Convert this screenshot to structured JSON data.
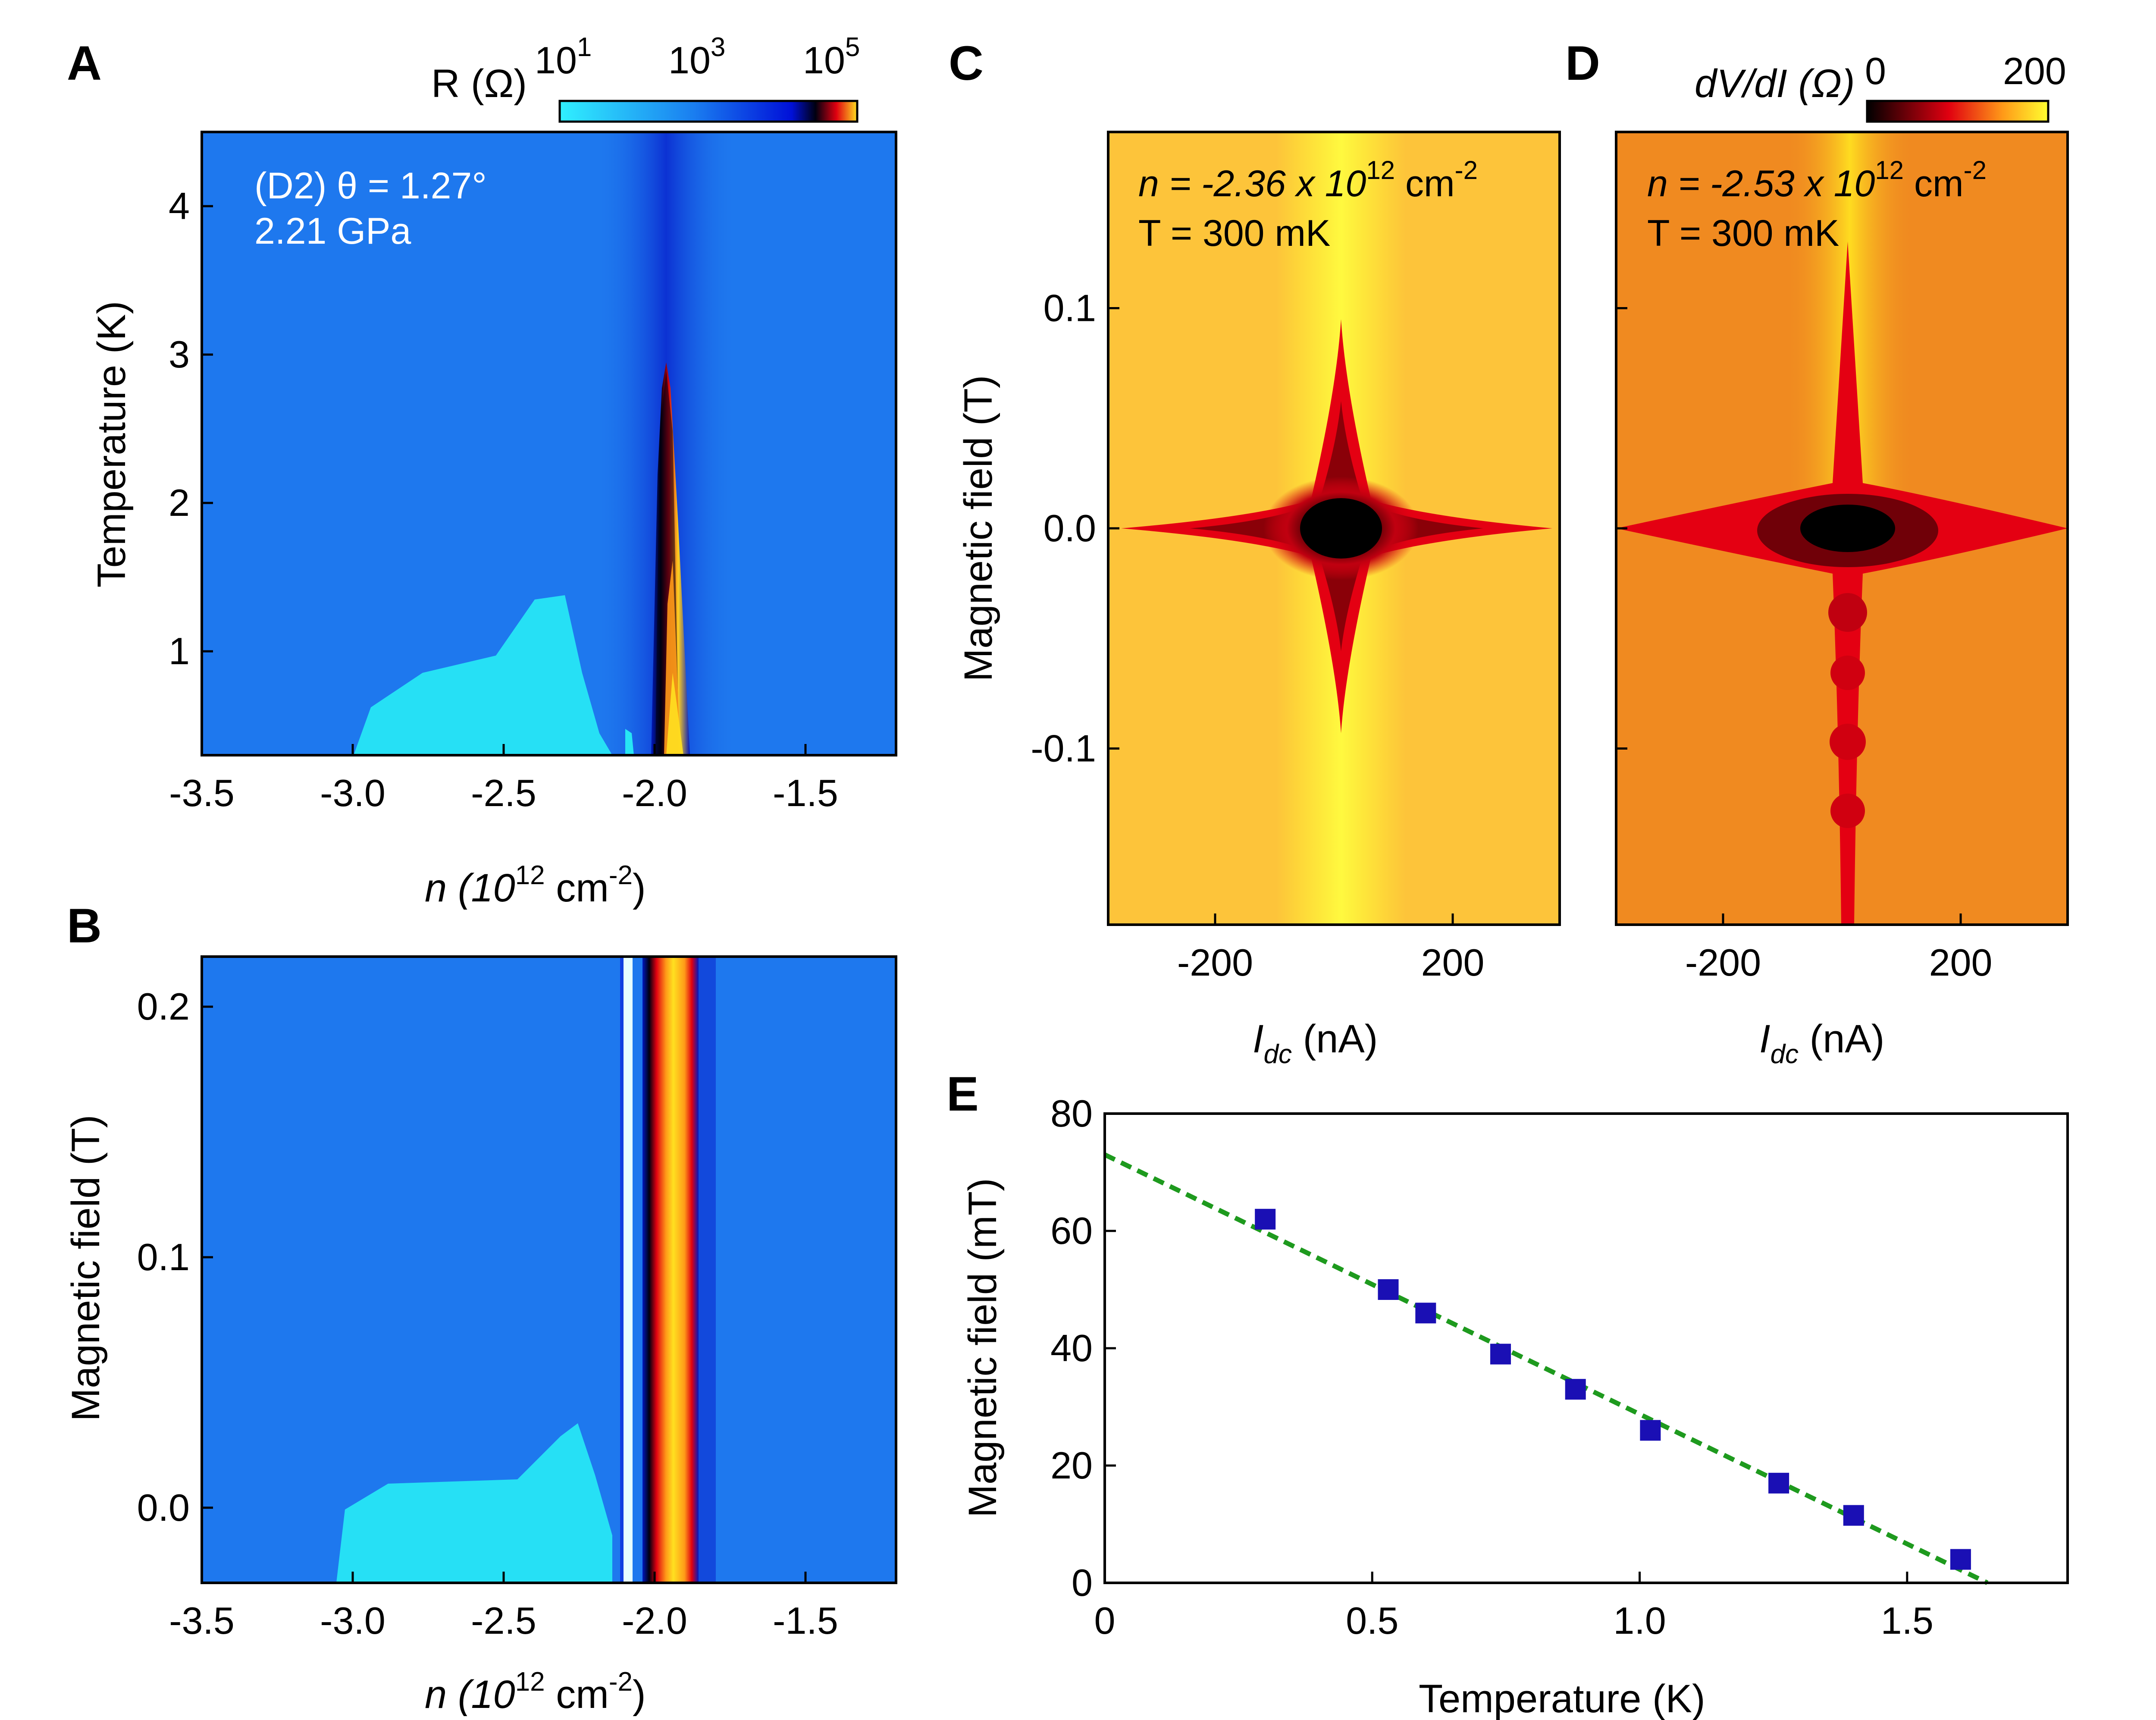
{
  "panels": {
    "A": {
      "label": "A",
      "colorbar": {
        "title": "R (Ω)",
        "ticks": [
          "10",
          "10",
          "10"
        ],
        "exponents": [
          "1",
          "3",
          "5"
        ]
      },
      "annotation_line1": "(D2) θ = 1.27°",
      "annotation_line2": "2.21 GPa",
      "xlabel_main": "n (10",
      "xlabel_exp1": "12",
      "xlabel_mid": " cm",
      "xlabel_exp2": "-2",
      "xlabel_end": ")",
      "ylabel": "Temperature (K)",
      "xticks": [
        "-3.5",
        "-3.0",
        "-2.5",
        "-2.0",
        "-1.5"
      ],
      "yticks": [
        "1",
        "2",
        "3",
        "4"
      ]
    },
    "B": {
      "label": "B",
      "xlabel_main": "n (10",
      "xlabel_exp1": "12",
      "xlabel_mid": " cm",
      "xlabel_exp2": "-2",
      "xlabel_end": ")",
      "ylabel": "Magnetic field (T)",
      "xticks": [
        "-3.5",
        "-3.0",
        "-2.5",
        "-2.0",
        "-1.5"
      ],
      "yticks": [
        "0.0",
        "0.1",
        "0.2"
      ]
    },
    "C": {
      "label": "C",
      "ann_n": "n = -2.36 x 10",
      "ann_n_exp": "12",
      "ann_n_unit": " cm",
      "ann_n_unit_exp": "-2",
      "ann_T": "T = 300 mK",
      "xlabel": "I",
      "xlabel_sub": "dc",
      "xlabel_end": " (nA)",
      "ylabel": "Magnetic field (T)",
      "xticks": [
        "-200",
        "200"
      ],
      "yticks": [
        "0.1",
        "0.0",
        "-0.1"
      ]
    },
    "D": {
      "label": "D",
      "colorbar": {
        "title": "dV/dI (Ω)",
        "min": "0",
        "max": "200"
      },
      "ann_n": "n = -2.53 x 10",
      "ann_n_exp": "12",
      "ann_n_unit": " cm",
      "ann_n_unit_exp": "-2",
      "ann_T": "T = 300 mK",
      "xlabel": "I",
      "xlabel_sub": "dc",
      "xlabel_end": " (nA)",
      "xticks": [
        "-200",
        "200"
      ]
    },
    "E": {
      "label": "E",
      "xlabel": "Temperature (K)",
      "ylabel": "Magnetic field (mT)",
      "xticks": [
        "0",
        "0.5",
        "1.0",
        "1.5"
      ],
      "yticks": [
        "0",
        "20",
        "40",
        "60",
        "80"
      ]
    }
  },
  "colors": {
    "scatter_marker": "#1a0fb4",
    "fit_line": "#1e9a1e",
    "map_blue": "#1e78ee",
    "map_cyan": "#27e6f4",
    "map_dark": "#000033",
    "heat_yellow": "#ffe81c",
    "heat_red": "#e40012"
  },
  "chart_data": [
    {
      "panel": "A",
      "type": "heatmap",
      "title": "",
      "xlabel": "n (10^12 cm^-2)",
      "ylabel": "Temperature (K)",
      "colorbar_label": "R (Ω)",
      "color_scale": "log",
      "color_range": [
        10,
        100000
      ],
      "xlim": [
        -3.5,
        -1.2
      ],
      "ylim": [
        0.3,
        4.5
      ],
      "annotations": [
        "(D2) θ = 1.27°",
        "2.21 GPa"
      ],
      "features": {
        "insulating_peak_n": -1.96,
        "superconducting_region_n": [
          -3.0,
          -2.05
        ],
        "superconducting_max_T": 1.4
      }
    },
    {
      "panel": "B",
      "type": "heatmap",
      "xlabel": "n (10^12 cm^-2)",
      "ylabel": "Magnetic field (T)",
      "xlim": [
        -3.5,
        -1.2
      ],
      "ylim": [
        -0.03,
        0.22
      ],
      "features": {
        "insulating_peak_n": -1.93,
        "superconducting_region_n": [
          -3.0,
          -2.1
        ]
      }
    },
    {
      "panel": "C",
      "type": "heatmap",
      "xlabel": "I_dc (nA)",
      "ylabel": "Magnetic field (T)",
      "colorbar_label": "dV/dI (Ω)",
      "color_range": [
        0,
        200
      ],
      "xlim": [
        -380,
        380
      ],
      "ylim": [
        -0.18,
        0.18
      ],
      "annotations": [
        "n = -2.36 x 10^12 cm^-2",
        "T = 300 mK"
      ]
    },
    {
      "panel": "D",
      "type": "heatmap",
      "xlabel": "I_dc (nA)",
      "colorbar_label": "dV/dI (Ω)",
      "color_range": [
        0,
        200
      ],
      "xlim": [
        -380,
        380
      ],
      "ylim": [
        -0.18,
        0.18
      ],
      "annotations": [
        "n = -2.53 x 10^12 cm^-2",
        "T = 300 mK"
      ]
    },
    {
      "panel": "E",
      "type": "scatter",
      "xlabel": "Temperature (K)",
      "ylabel": "Magnetic field (mT)",
      "xlim": [
        0,
        1.8
      ],
      "ylim": [
        0,
        80
      ],
      "series": [
        {
          "name": "data",
          "x": [
            0.3,
            0.53,
            0.6,
            0.74,
            0.88,
            1.02,
            1.26,
            1.4,
            1.6
          ],
          "y": [
            62,
            50,
            46,
            39,
            33,
            26,
            17,
            11.5,
            4
          ]
        },
        {
          "name": "linear fit",
          "x": [
            0,
            1.65
          ],
          "y": [
            73,
            0
          ]
        }
      ]
    }
  ]
}
